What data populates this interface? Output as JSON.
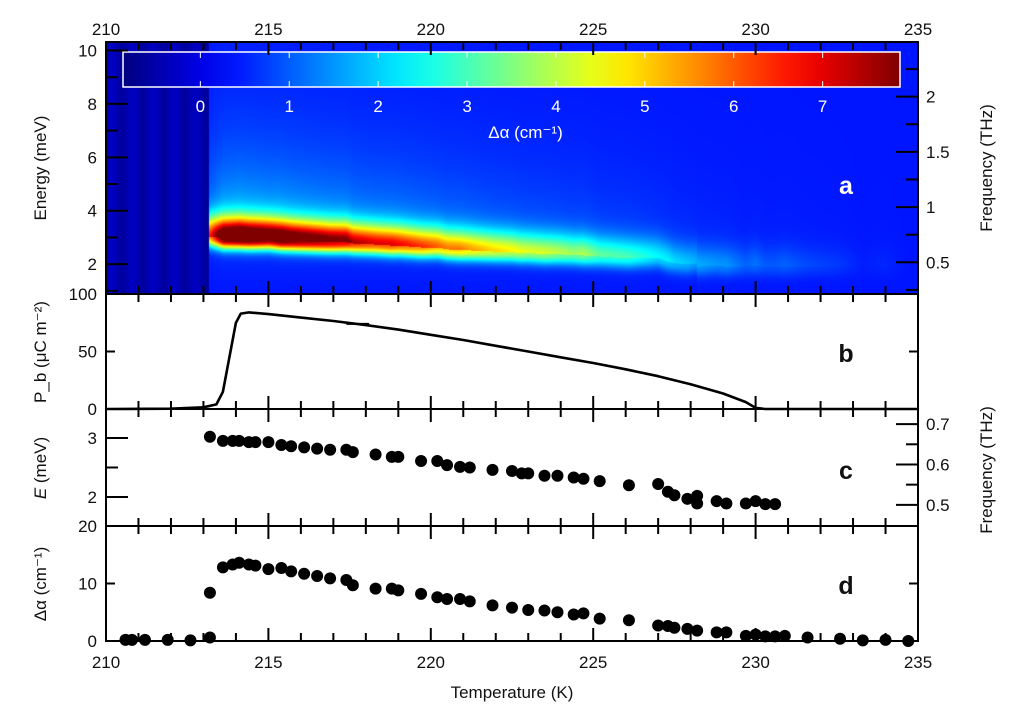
{
  "chart_data": [
    {
      "panel": "a",
      "type": "heatmap",
      "panel_label": "a",
      "xlim": [
        210,
        235
      ],
      "ylim": [
        0.88,
        10.32
      ],
      "ylabel": "Energy (meV)",
      "yticks": [
        2,
        4,
        6,
        8,
        10
      ],
      "top_xticks": [
        210,
        215,
        220,
        225,
        230,
        235
      ],
      "right_ylabel": "Frequency (THz)",
      "right_yticks": [
        0.5,
        1,
        1.5,
        2
      ],
      "colorbar": {
        "label": "Δα (cm⁻¹)",
        "ticks": [
          0,
          1,
          2,
          3,
          4,
          5,
          6,
          7
        ],
        "range": [
          -0.87,
          7.87
        ],
        "colormap": "jet"
      },
      "onset_temperature": 213.15,
      "description_values": {
        "peak_max": 7.6,
        "peak_energy_at_onset": 3.0
      }
    },
    {
      "panel": "b",
      "type": "line",
      "panel_label": "b",
      "ylabel": "P_b (μC m⁻²)",
      "ylabel_main": "P",
      "ylabel_sub": "b",
      "ylabel_rest": " (μC m⁻²)",
      "ylim": [
        0,
        100
      ],
      "yticks": [
        0,
        50,
        100
      ],
      "x": [
        210,
        212,
        213,
        213.4,
        213.6,
        213.8,
        214.0,
        214.15,
        214.4,
        215,
        216,
        217,
        218,
        219,
        220,
        221,
        222,
        223,
        224,
        225,
        226,
        227,
        228,
        229,
        229.7,
        230,
        230.3,
        235
      ],
      "y": [
        0,
        0.3,
        1.5,
        4,
        15,
        45,
        75,
        83,
        84,
        82.5,
        79.5,
        76.5,
        73,
        69,
        64.5,
        60,
        55,
        50,
        45,
        40,
        34.5,
        28.5,
        21.5,
        13.5,
        6,
        1,
        0,
        0
      ]
    },
    {
      "panel": "c",
      "type": "scatter",
      "panel_label": "c",
      "ylabel": "E (meV)",
      "ylabel_main": "E",
      "ylabel_rest": " (meV)",
      "ylim": [
        1.51,
        3.49
      ],
      "yticks": [
        2,
        3
      ],
      "right_ylabel": "Frequency (THz)",
      "right_ylim": [
        0.4475,
        0.7375
      ],
      "right_yticks": [
        0.5,
        0.6,
        0.7
      ],
      "x": [
        213.2,
        213.6,
        213.9,
        214.1,
        214.4,
        214.6,
        215.0,
        215.4,
        215.7,
        216.1,
        216.5,
        216.9,
        217.4,
        217.6,
        218.3,
        218.8,
        219.0,
        219.7,
        220.2,
        220.5,
        220.9,
        221.2,
        221.9,
        222.5,
        222.8,
        223.0,
        223.5,
        223.9,
        224.4,
        224.7,
        225.2,
        226.1,
        227.0,
        227.3,
        227.5,
        227.9,
        228.2,
        228.2,
        228.8,
        229.1,
        229.7,
        230.0,
        230.3,
        230.6
      ],
      "y": [
        3.02,
        2.95,
        2.95,
        2.95,
        2.93,
        2.93,
        2.93,
        2.88,
        2.86,
        2.84,
        2.82,
        2.8,
        2.8,
        2.76,
        2.72,
        2.68,
        2.68,
        2.61,
        2.61,
        2.54,
        2.51,
        2.5,
        2.46,
        2.44,
        2.4,
        2.4,
        2.36,
        2.36,
        2.33,
        2.31,
        2.27,
        2.2,
        2.22,
        2.09,
        2.03,
        1.97,
        2.02,
        1.89,
        1.93,
        1.89,
        1.89,
        1.93,
        1.88,
        1.88
      ]
    },
    {
      "panel": "d",
      "type": "scatter",
      "panel_label": "d",
      "ylabel": "Δα (cm⁻¹)",
      "ylim": [
        0,
        20
      ],
      "yticks": [
        0,
        10,
        20
      ],
      "xlabel": "Temperature (K)",
      "xlim": [
        210,
        235
      ],
      "xticks": [
        210,
        215,
        220,
        225,
        230,
        235
      ],
      "x": [
        210.6,
        210.8,
        211.2,
        211.9,
        212.6,
        213.2,
        213.2,
        213.6,
        213.9,
        214.1,
        214.4,
        214.6,
        215.0,
        215.4,
        215.7,
        216.1,
        216.5,
        216.9,
        217.4,
        217.6,
        218.3,
        218.8,
        219.0,
        219.7,
        220.2,
        220.5,
        220.9,
        221.2,
        221.9,
        222.5,
        223.0,
        223.5,
        223.9,
        224.4,
        224.7,
        225.2,
        226.1,
        227.0,
        227.3,
        227.5,
        227.9,
        228.2,
        228.8,
        229.1,
        229.7,
        230.0,
        230.3,
        230.6,
        230.9,
        231.6,
        232.6,
        233.3,
        234.0,
        234.7
      ],
      "y": [
        0.2,
        0.2,
        0.2,
        0.2,
        0.1,
        0.6,
        8.4,
        12.8,
        13.3,
        13.6,
        13.3,
        13.1,
        12.5,
        12.7,
        12.1,
        11.7,
        11.3,
        10.9,
        10.6,
        9.7,
        9.1,
        9.1,
        8.8,
        8.2,
        7.6,
        7.3,
        7.3,
        6.9,
        6.2,
        5.8,
        5.4,
        5.3,
        5.0,
        4.6,
        4.8,
        3.9,
        3.6,
        2.7,
        2.6,
        2.3,
        2.1,
        1.8,
        1.5,
        1.5,
        0.9,
        1.1,
        0.8,
        0.8,
        0.9,
        0.6,
        0.4,
        0.1,
        0.2,
        0.0
      ]
    }
  ]
}
